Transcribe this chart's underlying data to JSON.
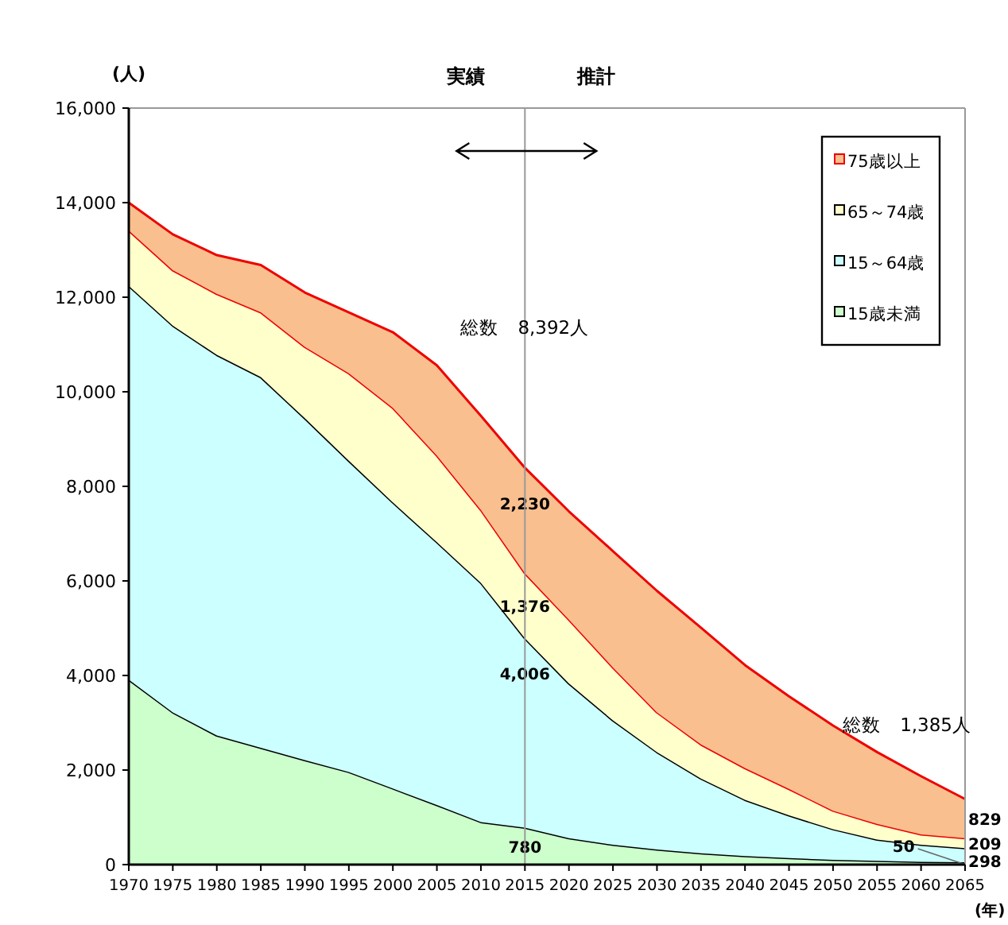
{
  "chart_data": {
    "type": "area",
    "stacked": true,
    "xlabel": "(年)",
    "ylabel": "(人)",
    "x": [
      1970,
      1975,
      1980,
      1985,
      1990,
      1995,
      2000,
      2005,
      2010,
      2015,
      2020,
      2025,
      2030,
      2035,
      2040,
      2045,
      2050,
      2055,
      2060,
      2065
    ],
    "xlim": [
      1970,
      2065
    ],
    "xticks": [
      1970,
      1975,
      1980,
      1985,
      1990,
      1995,
      2000,
      2005,
      2010,
      2015,
      2020,
      2025,
      2030,
      2035,
      2040,
      2045,
      2050,
      2055,
      2060,
      2065
    ],
    "ylim": [
      0,
      16000
    ],
    "yticks": [
      0,
      {
        "value": 2000,
        "label": "2,000"
      },
      {
        "value": 4000,
        "label": "4,000"
      },
      {
        "value": 6000,
        "label": "6,000"
      },
      {
        "value": 8000,
        "label": "8,000"
      },
      {
        "value": 10000,
        "label": "10,000"
      },
      {
        "value": 12000,
        "label": "12,000"
      },
      {
        "value": 14000,
        "label": "14,000"
      },
      {
        "value": 16000,
        "label": "16,000"
      }
    ],
    "grid": false,
    "legend": "top right",
    "series": [
      {
        "name": "15歳未満",
        "color": "#ccffcc",
        "values": [
          3910,
          3220,
          2730,
          2470,
          2210,
          1960,
          1610,
          1260,
          900,
          780,
          560,
          420,
          320,
          240,
          180,
          140,
          100,
          80,
          60,
          50
        ],
        "value_labels": [
          null,
          null,
          null,
          null,
          null,
          null,
          null,
          null,
          null,
          "780",
          null,
          null,
          null,
          null,
          null,
          null,
          null,
          null,
          null,
          "50"
        ]
      },
      {
        "name": "15～64歳",
        "color": "#ccffff",
        "values": [
          8330,
          8180,
          8050,
          7840,
          7230,
          6580,
          6050,
          5560,
          5060,
          4006,
          3270,
          2630,
          2060,
          1580,
          1190,
          900,
          650,
          450,
          360,
          298
        ],
        "value_labels": [
          null,
          null,
          null,
          null,
          null,
          null,
          null,
          null,
          null,
          "4,006",
          null,
          null,
          null,
          null,
          null,
          null,
          null,
          null,
          null,
          "298"
        ]
      },
      {
        "name": "65～74歳",
        "color": "#ffffcc",
        "values": [
          1170,
          1170,
          1290,
          1370,
          1510,
          1850,
          2000,
          1830,
          1540,
          1376,
          1350,
          1120,
          840,
          720,
          670,
          560,
          390,
          330,
          220,
          209
        ],
        "value_labels": [
          null,
          null,
          null,
          null,
          null,
          null,
          null,
          null,
          null,
          "1,376",
          null,
          null,
          null,
          null,
          null,
          null,
          null,
          null,
          null,
          "209"
        ]
      },
      {
        "name": "75歳以上",
        "color": "#f9bf8f",
        "values": [
          590,
          760,
          820,
          1000,
          1150,
          1290,
          1600,
          1910,
          1990,
          2230,
          2290,
          2460,
          2570,
          2470,
          2180,
          1960,
          1800,
          1520,
          1230,
          829
        ],
        "value_labels": [
          null,
          null,
          null,
          null,
          null,
          null,
          null,
          null,
          null,
          "2,230",
          null,
          null,
          null,
          null,
          null,
          null,
          null,
          null,
          null,
          "829"
        ]
      }
    ],
    "ref_lines": [
      {
        "axis": "x",
        "value": 2015,
        "color": "#999999"
      }
    ],
    "annotations": [
      "実績",
      "推計",
      "総数　8,392人",
      "総数　1,385人"
    ]
  }
}
